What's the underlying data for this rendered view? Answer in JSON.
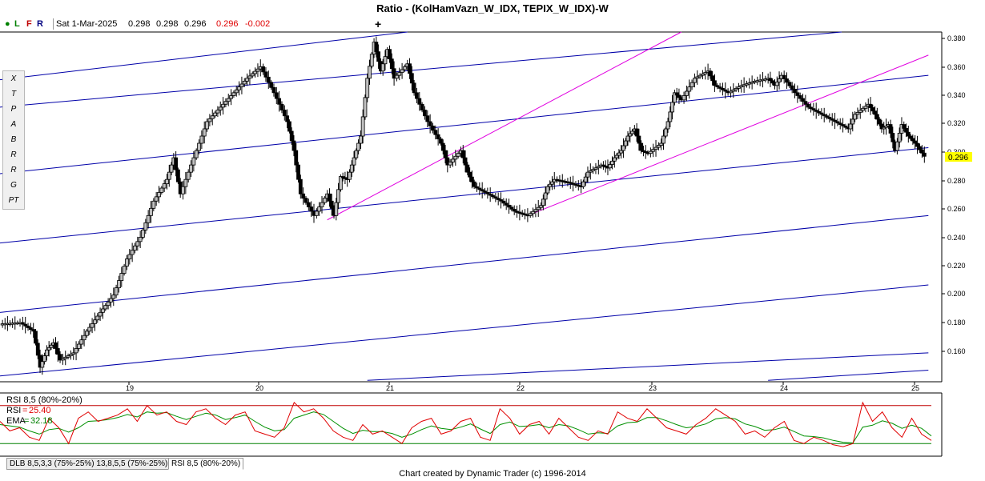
{
  "title": "Ratio - (KolHamVazn_W_IDX, TEPIX_W_IDX)-W",
  "quote_bar": {
    "flags": [
      "L",
      "F",
      "R"
    ],
    "date": "Sat 1-Mar-2025",
    "open": "0.298",
    "high": "0.298",
    "low": "0.296",
    "close": "0.296",
    "change": "-0.002",
    "crosshair_icon": "plus-icon"
  },
  "colors": {
    "channel_blue": "#0000a8",
    "channel_magenta": "#e000e0",
    "bar": "#000000",
    "bar_up": "#c0c0c0",
    "rsi_line": "#e00000",
    "ema_line": "#009000",
    "rsi_upper_band": "#c00000",
    "rsi_lower_band": "#008000",
    "price_highlight": "#ffff00"
  },
  "tools": [
    {
      "name": "delete-tool",
      "label": "X"
    },
    {
      "name": "trendline-tool",
      "label": "T"
    },
    {
      "name": "parallel-tool",
      "label": "P"
    },
    {
      "name": "andrews-tool",
      "label": "A"
    },
    {
      "name": "pitchfork-b-tool",
      "label": "B"
    },
    {
      "name": "retracement-tool",
      "label": "R"
    },
    {
      "name": "ratio-channel-tool",
      "label": "R"
    },
    {
      "name": "gann-fan-tool",
      "label": "G"
    },
    {
      "name": "time-projection-tool",
      "label": "PT"
    }
  ],
  "rsi_panel": {
    "header": "RSI 8,5 (80%-20%)",
    "rsi_label": "RSI",
    "rsi_value": "25.40",
    "ema_label": "EMA",
    "ema_value": "32.18"
  },
  "tabs": [
    "DLB 8,5,3,3 (75%-25%) 13,8,5,5 (75%-25%)",
    "RSI 8,5 (80%-20%)"
  ],
  "active_tab": 1,
  "footer": "Chart created by Dynamic Trader  (c) 1996-2014",
  "chart_data": {
    "type": "line",
    "title": "Ratio - (KolHamVazn_W_IDX, TEPIX_W_IDX)-W",
    "x_ticks": [
      "19",
      "20",
      "21",
      "22",
      "23",
      "24",
      "25"
    ],
    "y_ticks": [
      "0.160",
      "0.180",
      "0.200",
      "0.220",
      "0.240",
      "0.260",
      "0.280",
      "0.300",
      "0.320",
      "0.340",
      "0.360",
      "0.380"
    ],
    "last_price_label": "0.296",
    "xlim": [
      2018.25,
      2025.3
    ],
    "ylim": [
      0.14,
      0.382
    ],
    "series": [
      {
        "values": [
          [
            2018.25,
            0.18
          ],
          [
            2018.4,
            0.181
          ],
          [
            2018.5,
            0.175
          ],
          [
            2018.55,
            0.15
          ],
          [
            2018.6,
            0.162
          ],
          [
            2018.65,
            0.167
          ],
          [
            2018.7,
            0.155
          ],
          [
            2018.8,
            0.16
          ],
          [
            2018.9,
            0.175
          ],
          [
            2019.0,
            0.188
          ],
          [
            2019.1,
            0.2
          ],
          [
            2019.2,
            0.225
          ],
          [
            2019.3,
            0.24
          ],
          [
            2019.4,
            0.265
          ],
          [
            2019.5,
            0.28
          ],
          [
            2019.55,
            0.295
          ],
          [
            2019.6,
            0.27
          ],
          [
            2019.7,
            0.295
          ],
          [
            2019.8,
            0.32
          ],
          [
            2019.9,
            0.33
          ],
          [
            2020.0,
            0.34
          ],
          [
            2020.1,
            0.35
          ],
          [
            2020.2,
            0.358
          ],
          [
            2020.3,
            0.34
          ],
          [
            2020.4,
            0.32
          ],
          [
            2020.45,
            0.3
          ],
          [
            2020.5,
            0.27
          ],
          [
            2020.6,
            0.255
          ],
          [
            2020.7,
            0.27
          ],
          [
            2020.75,
            0.255
          ],
          [
            2020.8,
            0.282
          ],
          [
            2020.85,
            0.28
          ],
          [
            2020.9,
            0.295
          ],
          [
            2020.95,
            0.31
          ],
          [
            2021.0,
            0.35
          ],
          [
            2021.05,
            0.375
          ],
          [
            2021.1,
            0.355
          ],
          [
            2021.15,
            0.37
          ],
          [
            2021.2,
            0.35
          ],
          [
            2021.3,
            0.36
          ],
          [
            2021.35,
            0.34
          ],
          [
            2021.45,
            0.32
          ],
          [
            2021.55,
            0.305
          ],
          [
            2021.6,
            0.29
          ],
          [
            2021.7,
            0.3
          ],
          [
            2021.75,
            0.285
          ],
          [
            2021.8,
            0.275
          ],
          [
            2021.9,
            0.27
          ],
          [
            2022.0,
            0.265
          ],
          [
            2022.1,
            0.258
          ],
          [
            2022.2,
            0.255
          ],
          [
            2022.3,
            0.262
          ],
          [
            2022.35,
            0.275
          ],
          [
            2022.4,
            0.28
          ],
          [
            2022.5,
            0.278
          ],
          [
            2022.6,
            0.275
          ],
          [
            2022.65,
            0.285
          ],
          [
            2022.75,
            0.29
          ],
          [
            2022.8,
            0.288
          ],
          [
            2022.85,
            0.295
          ],
          [
            2022.9,
            0.3
          ],
          [
            2022.95,
            0.31
          ],
          [
            2023.0,
            0.315
          ],
          [
            2023.05,
            0.3
          ],
          [
            2023.1,
            0.298
          ],
          [
            2023.2,
            0.305
          ],
          [
            2023.25,
            0.32
          ],
          [
            2023.3,
            0.34
          ],
          [
            2023.35,
            0.335
          ],
          [
            2023.45,
            0.35
          ],
          [
            2023.55,
            0.355
          ],
          [
            2023.6,
            0.345
          ],
          [
            2023.7,
            0.34
          ],
          [
            2023.8,
            0.345
          ],
          [
            2023.9,
            0.348
          ],
          [
            2024.0,
            0.35
          ],
          [
            2024.05,
            0.345
          ],
          [
            2024.1,
            0.352
          ],
          [
            2024.2,
            0.34
          ],
          [
            2024.3,
            0.33
          ],
          [
            2024.4,
            0.325
          ],
          [
            2024.5,
            0.32
          ],
          [
            2024.6,
            0.315
          ],
          [
            2024.65,
            0.325
          ],
          [
            2024.75,
            0.332
          ],
          [
            2024.8,
            0.325
          ],
          [
            2024.85,
            0.315
          ],
          [
            2024.9,
            0.318
          ],
          [
            2024.95,
            0.3
          ],
          [
            2025.0,
            0.318
          ],
          [
            2025.05,
            0.31
          ],
          [
            2025.1,
            0.305
          ],
          [
            2025.17,
            0.296
          ]
        ]
      }
    ],
    "channels": [
      {
        "color": "blue",
        "points": [
          [
            2018.25,
            0.349
          ],
          [
            2021.3,
            0.382
          ]
        ]
      },
      {
        "color": "blue",
        "points": [
          [
            2018.25,
            0.33
          ],
          [
            2024.55,
            0.382
          ]
        ]
      },
      {
        "color": "blue",
        "points": [
          [
            2018.25,
            0.284
          ],
          [
            2025.2,
            0.352
          ]
        ]
      },
      {
        "color": "blue",
        "points": [
          [
            2018.25,
            0.236
          ],
          [
            2025.2,
            0.302
          ]
        ]
      },
      {
        "color": "blue",
        "points": [
          [
            2018.25,
            0.188
          ],
          [
            2025.2,
            0.255
          ]
        ]
      },
      {
        "color": "blue",
        "points": [
          [
            2018.25,
            0.144
          ],
          [
            2025.2,
            0.207
          ]
        ]
      },
      {
        "color": "blue",
        "points": [
          [
            2021.0,
            0.141
          ],
          [
            2025.2,
            0.16
          ]
        ]
      },
      {
        "color": "blue",
        "points": [
          [
            2024.0,
            0.141
          ],
          [
            2025.2,
            0.148
          ]
        ]
      },
      {
        "color": "magenta",
        "points": [
          [
            2020.7,
            0.252
          ],
          [
            2023.35,
            0.382
          ]
        ]
      },
      {
        "color": "magenta",
        "points": [
          [
            2022.2,
            0.255
          ],
          [
            2025.2,
            0.366
          ]
        ]
      }
    ],
    "rsi": {
      "upper_band": 80,
      "lower_band": 20,
      "ylim": [
        0,
        100
      ],
      "rsi_values": [
        55,
        40,
        45,
        30,
        25,
        60,
        45,
        20,
        60,
        70,
        55,
        60,
        65,
        75,
        55,
        80,
        65,
        70,
        55,
        50,
        70,
        75,
        60,
        50,
        65,
        70,
        40,
        35,
        30,
        45,
        85,
        70,
        75,
        60,
        40,
        30,
        25,
        50,
        35,
        40,
        30,
        20,
        45,
        55,
        60,
        35,
        40,
        55,
        60,
        30,
        25,
        75,
        60,
        35,
        50,
        55,
        35,
        60,
        45,
        30,
        25,
        40,
        35,
        70,
        60,
        55,
        75,
        60,
        45,
        40,
        35,
        50,
        60,
        75,
        65,
        55,
        35,
        40,
        30,
        45,
        55,
        25,
        20,
        30,
        25,
        18,
        15,
        20,
        85,
        55,
        70,
        45,
        30,
        60,
        35,
        25
      ],
      "ema_values": [
        50,
        48,
        46,
        40,
        35,
        42,
        44,
        38,
        45,
        55,
        56,
        58,
        61,
        66,
        62,
        70,
        68,
        69,
        63,
        58,
        63,
        68,
        65,
        58,
        61,
        65,
        55,
        46,
        40,
        42,
        60,
        65,
        70,
        66,
        55,
        44,
        36,
        41,
        39,
        39,
        36,
        30,
        35,
        42,
        48,
        44,
        42,
        46,
        51,
        43,
        36,
        50,
        54,
        47,
        48,
        50,
        45,
        50,
        48,
        42,
        35,
        37,
        36,
        48,
        53,
        54,
        61,
        61,
        56,
        50,
        45,
        47,
        51,
        59,
        61,
        59,
        51,
        47,
        41,
        42,
        46,
        39,
        32,
        31,
        29,
        25,
        22,
        21,
        46,
        49,
        56,
        52,
        44,
        49,
        44,
        32
      ]
    }
  }
}
